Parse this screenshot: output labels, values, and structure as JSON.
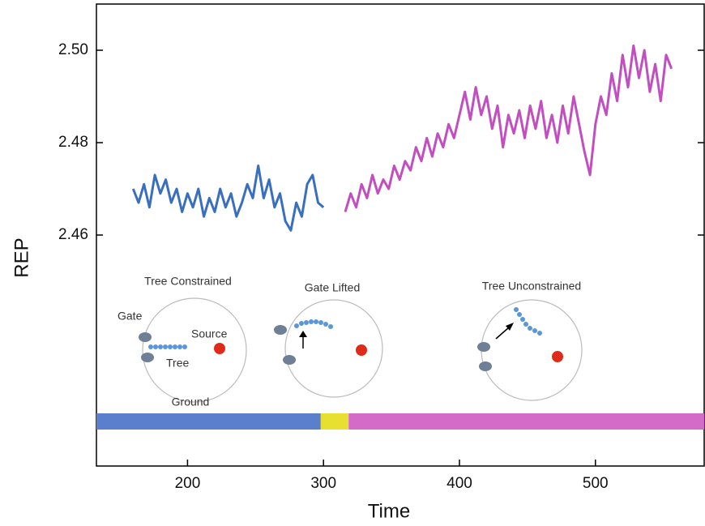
{
  "chart_data": {
    "type": "line",
    "x_label": "Time",
    "y_label": "REP",
    "xlim": [
      133,
      580
    ],
    "ylim": [
      2.41,
      2.51
    ],
    "xticks": [
      200,
      300,
      400,
      500
    ],
    "yticks": [
      2.46,
      2.48,
      {
        "value": 2.5,
        "label": "2.50"
      }
    ],
    "series": [
      {
        "color": "#3a6fc0",
        "x": [
          160,
          164,
          168,
          172,
          176,
          180,
          184,
          188,
          192,
          196,
          200,
          204,
          208,
          212,
          216,
          220,
          224,
          228,
          232,
          236,
          240,
          244,
          248,
          252,
          256,
          260,
          264,
          268,
          272,
          276,
          280,
          284,
          288,
          292,
          296,
          300
        ],
        "values": [
          2.47,
          2.467,
          2.471,
          2.466,
          2.473,
          2.469,
          2.472,
          2.467,
          2.47,
          2.465,
          2.469,
          2.466,
          2.47,
          2.464,
          2.468,
          2.465,
          2.47,
          2.466,
          2.469,
          2.464,
          2.467,
          2.471,
          2.468,
          2.475,
          2.468,
          2.472,
          2.466,
          2.469,
          2.463,
          2.461,
          2.467,
          2.464,
          2.471,
          2.473,
          2.467,
          2.466
        ]
      },
      {
        "color": "#c24fbf",
        "x": [
          316,
          320,
          324,
          328,
          332,
          336,
          340,
          344,
          348,
          352,
          356,
          360,
          364,
          368,
          372,
          376,
          380,
          384,
          388,
          392,
          396,
          400,
          404,
          408,
          412,
          416,
          420,
          424,
          428,
          432,
          436,
          440,
          444,
          448,
          452,
          456,
          460,
          464,
          468,
          472,
          476,
          480,
          484,
          488,
          492,
          496,
          500,
          504,
          508,
          512,
          516,
          520,
          524,
          528,
          532,
          536,
          540,
          544,
          548,
          552,
          556
        ],
        "values": [
          2.465,
          2.469,
          2.466,
          2.471,
          2.468,
          2.473,
          2.469,
          2.472,
          2.47,
          2.475,
          2.472,
          2.476,
          2.474,
          2.479,
          2.476,
          2.481,
          2.477,
          2.482,
          2.479,
          2.484,
          2.481,
          2.486,
          2.491,
          2.485,
          2.492,
          2.486,
          2.49,
          2.483,
          2.488,
          2.479,
          2.486,
          2.482,
          2.487,
          2.481,
          2.488,
          2.483,
          2.489,
          2.481,
          2.486,
          2.48,
          2.488,
          2.482,
          2.49,
          2.484,
          2.478,
          2.473,
          2.484,
          2.49,
          2.486,
          2.495,
          2.489,
          2.499,
          2.492,
          2.501,
          2.494,
          2.5,
          2.491,
          2.497,
          2.489,
          2.499,
          2.496
        ]
      }
    ],
    "phases": [
      {
        "start": 133,
        "end": 298,
        "color": "#5b7fcc"
      },
      {
        "start": 298,
        "end": 318.5,
        "color": "#e8e030"
      },
      {
        "start": 318.5,
        "end": 580,
        "color": "#d46bc8"
      }
    ],
    "annotations": [
      "Tree Constrained",
      "Gate",
      "Source",
      "Tree",
      "Ground",
      "Gate Lifted",
      "Tree Unconstrained"
    ]
  }
}
